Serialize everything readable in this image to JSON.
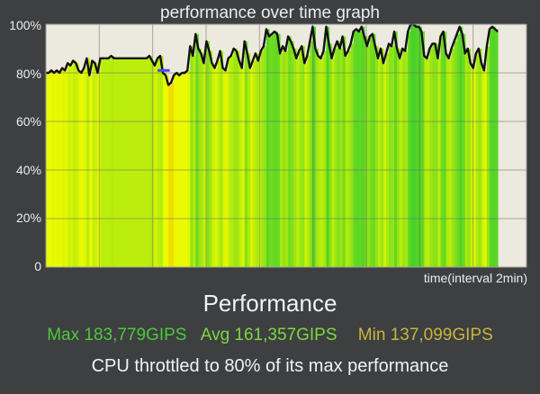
{
  "chart_data": {
    "type": "area",
    "title": "performance over time graph",
    "xlabel": "time(interval 2min)",
    "ylabel": "",
    "ylim": [
      0,
      100
    ],
    "yticks": [
      "0",
      "20%",
      "40%",
      "60%",
      "80%",
      "100%"
    ],
    "grid": true,
    "reference_line": 80,
    "series": [
      {
        "values": [
          80,
          80,
          81,
          80,
          81,
          80,
          82,
          81,
          84,
          83,
          85,
          84,
          81,
          80,
          82,
          86,
          79,
          85,
          84,
          80,
          86,
          86,
          86,
          86,
          87,
          86,
          86,
          86,
          86,
          86,
          86,
          86,
          86,
          86,
          86,
          86,
          86,
          86,
          87,
          85,
          83,
          86,
          87,
          80,
          79,
          75,
          76,
          79,
          80,
          79,
          80,
          80,
          81,
          91,
          87,
          96,
          90,
          88,
          84,
          93,
          89,
          84,
          82,
          85,
          89,
          82,
          81,
          86,
          87,
          90,
          89,
          85,
          82,
          93,
          88,
          82,
          85,
          88,
          85,
          89,
          91,
          98,
          95,
          96,
          97,
          96,
          88,
          91,
          89,
          95,
          93,
          90,
          86,
          89,
          91,
          84,
          87,
          93,
          99,
          90,
          87,
          86,
          89,
          99,
          92,
          86,
          90,
          93,
          90,
          95,
          87,
          89,
          92,
          97,
          98,
          97,
          99,
          95,
          91,
          95,
          96,
          91,
          86,
          90,
          84,
          88,
          92,
          91,
          97,
          90,
          86,
          90,
          89,
          97,
          100,
          100,
          99,
          99,
          97,
          87,
          86,
          90,
          92,
          92,
          86,
          95,
          97,
          88,
          86,
          90,
          93,
          96,
          99,
          96,
          88,
          90,
          84,
          82,
          88,
          90,
          84,
          81,
          91,
          98,
          99,
          98,
          97
        ]
      }
    ],
    "stats": {
      "heading": "Performance",
      "max": "Max 183,779GIPS",
      "avg": "Avg 161,357GIPS",
      "min": "Min 137,099GIPS",
      "note": "CPU throttled to 80% of its max performance"
    },
    "colors": {
      "background": "#3d3f41",
      "plot_background": "#ece9df",
      "line": "#111111",
      "marker": "#4a4ee0",
      "max": "#4cc93a",
      "avg": "#7dd640",
      "min": "#c9b53a"
    }
  }
}
